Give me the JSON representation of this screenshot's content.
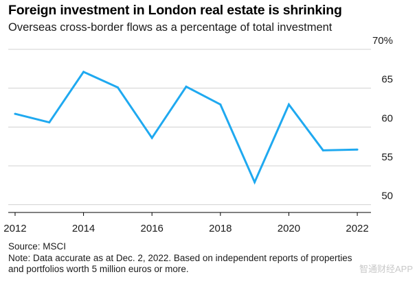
{
  "chart_data": {
    "type": "line",
    "title": "Foreign investment in London real estate is shrinking",
    "subtitle": "Overseas cross-border flows as a percentage of total investment",
    "xlabel": "",
    "ylabel": "",
    "x": [
      2012,
      2013,
      2014,
      2015,
      2016,
      2017,
      2018,
      2019,
      2020,
      2021,
      2022
    ],
    "series": [
      {
        "name": "Overseas cross-border flows",
        "values": [
          61.7,
          60.6,
          67.1,
          65.1,
          58.6,
          65.2,
          62.9,
          52.9,
          62.9,
          57.0,
          57.1
        ]
      }
    ],
    "ylim": [
      49,
      70
    ],
    "xlim": [
      2011.8,
      2022.4
    ],
    "yticks": [
      50,
      55,
      60,
      65,
      70
    ],
    "ytick_labels": [
      "50",
      "55",
      "60",
      "65",
      "70%"
    ],
    "xticks": [
      2012,
      2014,
      2016,
      2018,
      2020,
      2022
    ],
    "xtick_labels": [
      "2012",
      "2014",
      "2016",
      "2018",
      "2020",
      "2022"
    ],
    "grid": true,
    "line_color": "#1fa9f0",
    "grid_color": "#d0d0d0",
    "axis_color": "#000000",
    "source": "Source: MSCI",
    "note_line1": "Note: Data accurate as at Dec. 2, 2022. Based on independent reports of properties",
    "note_line2": "and portfolios worth 5 million euros or more."
  },
  "watermark": "智通财经APP"
}
